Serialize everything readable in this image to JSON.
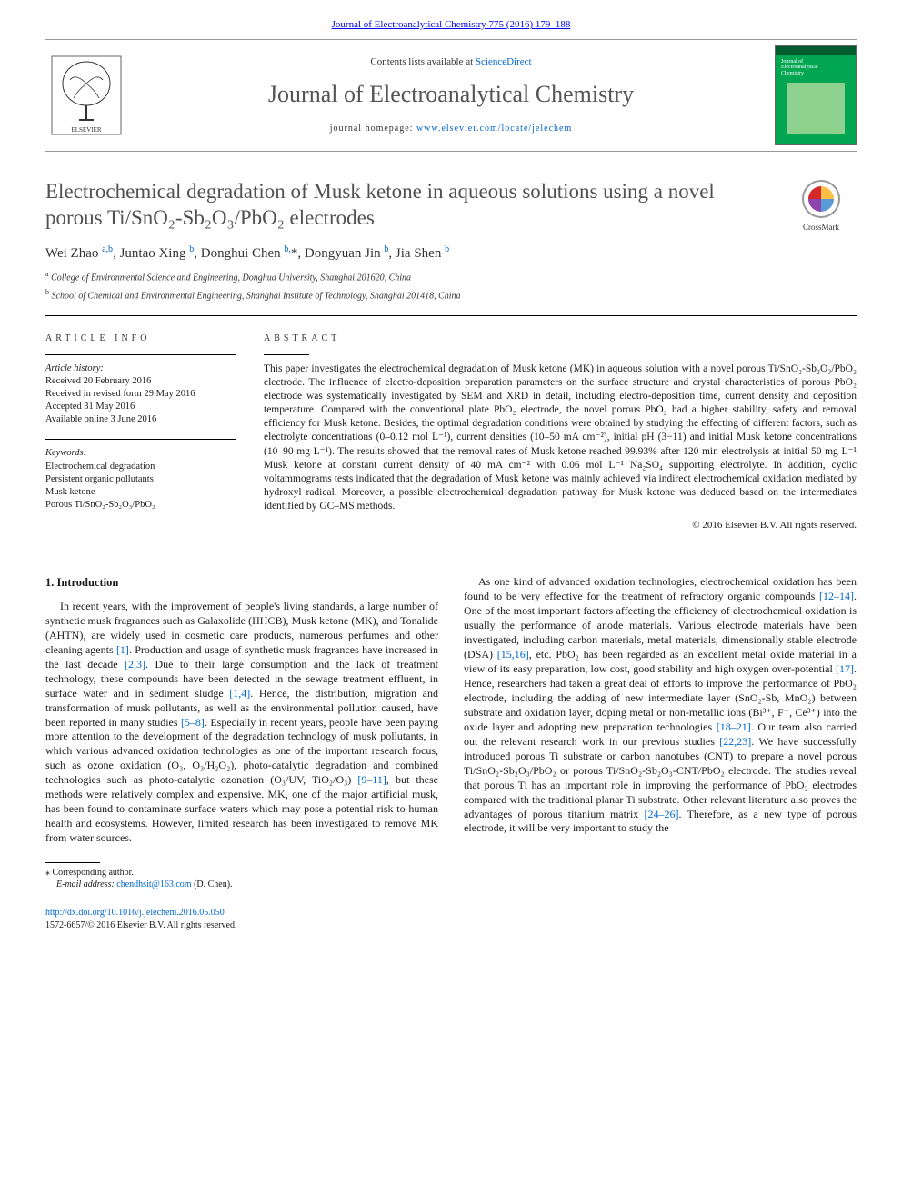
{
  "header": {
    "top_citation": "Journal of Electroanalytical Chemistry 775 (2016) 179–188",
    "contents_prefix": "Contents lists available at ",
    "contents_link": "ScienceDirect",
    "journal_name": "Journal of Electroanalytical Chemistry",
    "homepage_prefix": "journal homepage: ",
    "homepage_url": "www.elsevier.com/locate/jelechem",
    "cover_text": "Journal of\nElectroanalytical\nChemistry"
  },
  "crossmark_label": "CrossMark",
  "article": {
    "title": "Electrochemical degradation of Musk ketone in aqueous solutions using a novel porous Ti/SnO₂-Sb₂O₃/PbO₂ electrodes",
    "authors_html": "Wei Zhao <sup><a href=\"#\">a,b</a></sup>, Juntao Xing <sup><a href=\"#\">b</a></sup>, Donghui Chen <sup><a href=\"#\">b,</a></sup>*, Dongyuan Jin <sup><a href=\"#\">b</a></sup>, Jia Shen <sup><a href=\"#\">b</a></sup>",
    "affiliations": [
      {
        "sup": "a",
        "text": "College of Environmental Science and Engineering, Donghua University, Shanghai 201620, China"
      },
      {
        "sup": "b",
        "text": "School of Chemical and Environmental Engineering, Shanghai Institute of Technology, Shanghai 201418, China"
      }
    ]
  },
  "info": {
    "label": "article info",
    "history_label": "Article history:",
    "history": [
      "Received 20 February 2016",
      "Received in revised form 29 May 2016",
      "Accepted 31 May 2016",
      "Available online 3 June 2016"
    ],
    "keywords_label": "Keywords:",
    "keywords": [
      "Electrochemical degradation",
      "Persistent organic pollutants",
      "Musk ketone",
      "Porous Ti/SnO₂-Sb₂O₃/PbO₂"
    ]
  },
  "abstract": {
    "label": "abstract",
    "text": "This paper investigates the electrochemical degradation of Musk ketone (MK) in aqueous solution with a novel porous Ti/SnO₂-Sb₂O₃/PbO₂ electrode. The influence of electro-deposition preparation parameters on the surface structure and crystal characteristics of porous PbO₂ electrode was systematically investigated by SEM and XRD in detail, including electro-deposition time, current density and deposition temperature. Compared with the conventional plate PbO₂ electrode, the novel porous PbO₂ had a higher stability, safety and removal efficiency for Musk ketone. Besides, the optimal degradation conditions were obtained by studying the effecting of different factors, such as electrolyte concentrations (0–0.12 mol L⁻¹), current densities (10–50 mA cm⁻²), initial pH (3−11) and initial Musk ketone concentrations (10–90 mg L⁻¹). The results showed that the removal rates of Musk ketone reached 99.93% after 120 min electrolysis at initial 50 mg L⁻¹ Musk ketone at constant current density of 40 mA cm⁻² with 0.06 mol L⁻¹ Na₂SO₄ supporting electrolyte. In addition, cyclic voltammograms tests indicated that the degradation of Musk ketone was mainly achieved via indirect electrochemical oxidation mediated by hydroxyl radical. Moreover, a possible electrochemical degradation pathway for Musk ketone was deduced based on the intermediates identified by GC–MS methods.",
    "copyright": "© 2016 Elsevier B.V. All rights reserved."
  },
  "body": {
    "heading": "1. Introduction",
    "p1_pre": "In recent years, with the improvement of people's living standards, a large number of synthetic musk fragrances such as Galaxolide (HHCB), Musk ketone (MK), and Tonalide (AHTN), are widely used in cosmetic care products, numerous perfumes and other cleaning agents ",
    "ref1": "[1]",
    "p1_a": ". Production and usage of synthetic musk fragrances have increased in the last decade ",
    "ref2": "[2,3]",
    "p1_b": ". Due to their large consumption and the lack of treatment technology, these compounds have been detected in the sewage treatment effluent, in surface water and in sediment sludge ",
    "ref3": "[1,4]",
    "p1_c": ". Hence, the distribution, migration and transformation of musk pollutants, as well as the environmental pollution caused, have been reported in many studies ",
    "ref4": "[5–8]",
    "p1_d": ". Especially in recent years, people have been paying more attention to the development of the degradation technology of musk pollutants, in which various advanced oxidation technologies as one of the important research focus, such as ozone oxidation (O₃, O₃/H₂O₂), photo-catalytic degradation and combined technologies such as photo-catalytic ozonation (O₃/UV, TiO₂/O₃) ",
    "ref5": "[9–11]",
    "p1_e": ", but these methods were relatively complex and expensive. MK, one of the major artificial musk, has been found to contaminate surface waters which may pose a potential risk to human health and ecosystems. However, limited research has been investigated to remove MK from water sources.",
    "p2_pre": "As one kind of advanced oxidation technologies, electrochemical oxidation has been found to be very effective for the treatment of refractory organic compounds ",
    "ref6": "[12–14]",
    "p2_a": ". One of the most important factors affecting the efficiency of electrochemical oxidation is usually the performance of anode materials. Various electrode materials have been investigated, including carbon materials, metal materials, dimensionally stable electrode (DSA) ",
    "ref7": "[15,16]",
    "p2_b": ", etc. PbO₂ has been regarded as an excellent metal oxide material in a view of its easy preparation, low cost, good stability and high oxygen over-potential ",
    "ref8": "[17]",
    "p2_c": ". Hence, researchers had taken a great deal of efforts to improve the performance of PbO₂ electrode, including the adding of new intermediate layer (SnO₂-Sb, MnO₂) between substrate and oxidation layer, doping metal or non-metallic ions (Bi³⁺, F⁻, Ce³⁺) into the oxide layer and adopting new preparation technologies ",
    "ref9": "[18–21]",
    "p2_d": ". Our team also carried out the relevant research work in our previous studies ",
    "ref10": "[22,23]",
    "p2_e": ". We have successfully introduced porous Ti substrate or carbon nanotubes (CNT) to prepare a novel porous Ti/SnO₂-Sb₂O₃/PbO₂ or porous Ti/SnO₂-Sb₂O₃-CNT/PbO₂ electrode. The studies reveal that porous Ti has an important role in improving the performance of PbO₂ electrodes compared with the traditional planar Ti substrate. Other relevant literature also proves the advantages of porous titanium matrix ",
    "ref11": "[24–26]",
    "p2_f": ". Therefore, as a new type of porous electrode, it will be very important to study the"
  },
  "footnote": {
    "corr": "⁎ Corresponding author.",
    "email_label": "E-mail address: ",
    "email": "chendhsit@163.com",
    "email_suffix": " (D. Chen)."
  },
  "doi": {
    "url": "http://dx.doi.org/10.1016/j.jelechem.2016.05.050",
    "line2": "1572-6657/© 2016 Elsevier B.V. All rights reserved."
  },
  "colors": {
    "link": "#0066cc",
    "text": "#1a1a1a",
    "title_gray": "#505050",
    "cover_green": "#00a651",
    "elsevier_orange": "#ff6a00"
  }
}
